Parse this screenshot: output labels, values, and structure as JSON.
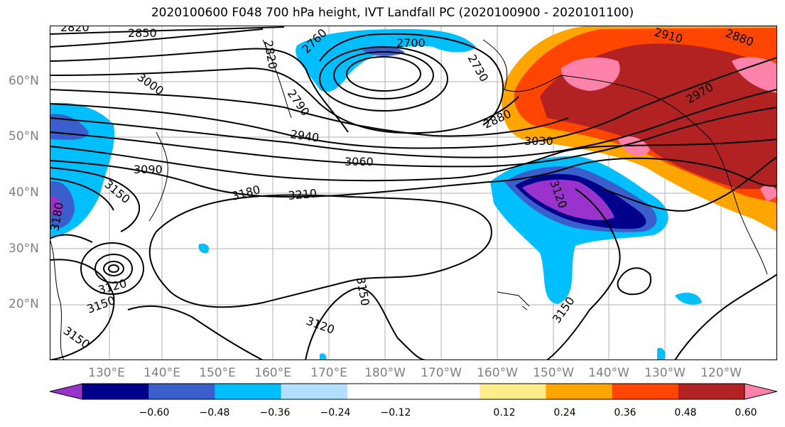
{
  "title": "2020100600 F048 700 hPa height, IVT Landfall PC (2020100900 - 2020101100)",
  "lat_labels": [
    "60°N",
    "50°N",
    "40°N",
    "30°N",
    "20°N"
  ],
  "lon_labels": [
    "130°E",
    "140°E",
    "150°E",
    "160°E",
    "170°E",
    "180°W",
    "170°W",
    "160°W",
    "150°W",
    "140°W",
    "130°W",
    "120°W"
  ],
  "contour_labels": [
    "2820",
    "2850",
    "2760",
    "2700",
    "2730",
    "2820",
    "2790",
    "3000",
    "2910",
    "2880",
    "2880",
    "2970",
    "2940",
    "3030",
    "3060",
    "3090",
    "3150",
    "3180",
    "3210",
    "3120",
    "3180",
    "3120",
    "3150",
    "3150",
    "3150",
    "3120",
    "3150"
  ],
  "colorbar": {
    "colors": [
      "#9a32cd",
      "#00008b",
      "#3a5fcd",
      "#00bfff",
      "#b2dfff",
      "#ffffff",
      "#ffffff",
      "#ffec8b",
      "#ffa500",
      "#ff4500",
      "#b22222",
      "#ff82ab"
    ],
    "ticks": [
      "−0.60",
      "−0.48",
      "−0.36",
      "−0.24",
      "−0.12",
      "0.12",
      "0.24",
      "0.36",
      "0.48",
      "0.60"
    ]
  }
}
